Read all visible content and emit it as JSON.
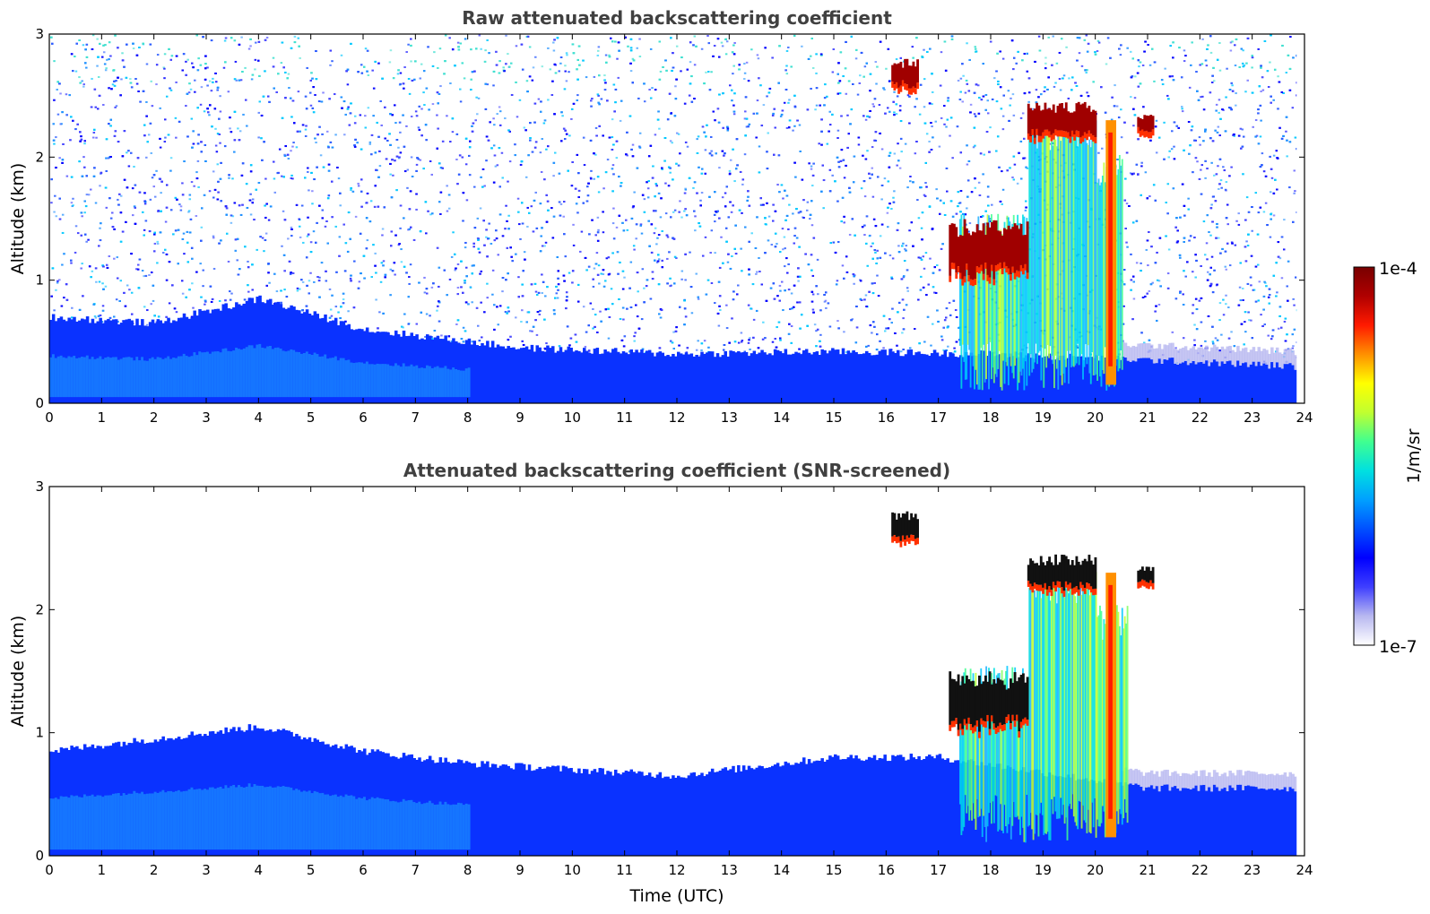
{
  "colors": {
    "background": "#ffffff",
    "axis": "#000000",
    "title": "#404040",
    "colormap": [
      "#ffffff",
      "#b8b8f0",
      "#3f3fff",
      "#0000ff",
      "#0050ff",
      "#00a0ff",
      "#00e0e0",
      "#40ff90",
      "#c0ff30",
      "#ffff00",
      "#ff9000",
      "#ff1a00",
      "#b00000",
      "#780000"
    ]
  },
  "colorbar": {
    "label": "1/m/sr",
    "max_label": "1e-4",
    "min_label": "1e-7",
    "scale": "log"
  },
  "chart_data": [
    {
      "type": "heatmap",
      "title": "Raw attenuated backscattering coefficient",
      "xlabel": "",
      "ylabel": "Altitude (km)",
      "xlim": [
        0,
        24
      ],
      "ylim": [
        0,
        3
      ],
      "xticks": [
        "0",
        "1",
        "2",
        "3",
        "4",
        "5",
        "6",
        "7",
        "8",
        "9",
        "10",
        "11",
        "12",
        "13",
        "14",
        "15",
        "16",
        "17",
        "18",
        "19",
        "20",
        "21",
        "22",
        "23",
        "24"
      ],
      "yticks": [
        "0",
        "1",
        "2",
        "3"
      ],
      "data_end_time": 23.85,
      "noise_background": "scattered blue/cyan speckle over full altitude range",
      "layers": [
        {
          "name": "boundary layer",
          "x_start": 0,
          "x_end": 23.85,
          "top_km_by_hour": [
            [
              0,
              0.7
            ],
            [
              2,
              0.65
            ],
            [
              4,
              0.85
            ],
            [
              6,
              0.6
            ],
            [
              9,
              0.45
            ],
            [
              12,
              0.4
            ],
            [
              15,
              0.42
            ],
            [
              18,
              0.4
            ],
            [
              21,
              0.35
            ],
            [
              23.85,
              0.3
            ]
          ],
          "level": "blue"
        },
        {
          "name": "cloud base lower",
          "x_start": 17.2,
          "x_end": 18.7,
          "alt_km": [
            1.0,
            1.5
          ],
          "level": "dark red"
        },
        {
          "name": "cloud upper",
          "x_start": 18.7,
          "x_end": 20.0,
          "alt_km": [
            2.15,
            2.45
          ],
          "level": "dark red"
        },
        {
          "name": "cloud aloft",
          "x_start": 16.1,
          "x_end": 16.6,
          "alt_km": [
            2.55,
            2.8
          ],
          "level": "dark red"
        },
        {
          "name": "cloud aloft",
          "x_start": 20.8,
          "x_end": 21.1,
          "alt_km": [
            2.2,
            2.35
          ],
          "level": "dark red"
        },
        {
          "name": "precipitation streaks",
          "x_start": 17.4,
          "x_end": 20.5,
          "alt_km": [
            0.1,
            2.4
          ],
          "level": "cyan-yellow"
        }
      ]
    },
    {
      "type": "heatmap",
      "title": "Attenuated backscattering coefficient (SNR-screened)",
      "xlabel": "Time (UTC)",
      "ylabel": "Altitude (km)",
      "xlim": [
        0,
        24
      ],
      "ylim": [
        0,
        3
      ],
      "xticks": [
        "0",
        "1",
        "2",
        "3",
        "4",
        "5",
        "6",
        "7",
        "8",
        "9",
        "10",
        "11",
        "12",
        "13",
        "14",
        "15",
        "16",
        "17",
        "18",
        "19",
        "20",
        "21",
        "22",
        "23",
        "24"
      ],
      "yticks": [
        "0",
        "1",
        "2",
        "3"
      ],
      "data_end_time": 23.85,
      "noise_background": "removed (white)",
      "layers": [
        {
          "name": "boundary layer",
          "x_start": 0,
          "x_end": 23.85,
          "top_km_by_hour": [
            [
              0,
              0.85
            ],
            [
              2,
              0.95
            ],
            [
              4,
              1.05
            ],
            [
              5,
              0.95
            ],
            [
              6,
              0.85
            ],
            [
              8,
              0.75
            ],
            [
              10,
              0.7
            ],
            [
              12,
              0.65
            ],
            [
              15,
              0.8
            ],
            [
              17,
              0.8
            ],
            [
              21,
              0.55
            ],
            [
              23.85,
              0.55
            ]
          ],
          "level": "blue"
        },
        {
          "name": "cloud base lower",
          "x_start": 17.2,
          "x_end": 18.7,
          "alt_km": [
            1.0,
            1.5
          ],
          "level": "black/dark red"
        },
        {
          "name": "cloud upper",
          "x_start": 18.7,
          "x_end": 20.0,
          "alt_km": [
            2.15,
            2.45
          ],
          "level": "black"
        },
        {
          "name": "cloud aloft",
          "x_start": 16.1,
          "x_end": 16.6,
          "alt_km": [
            2.55,
            2.8
          ],
          "level": "black"
        },
        {
          "name": "cloud aloft",
          "x_start": 20.8,
          "x_end": 21.1,
          "alt_km": [
            2.2,
            2.35
          ],
          "level": "black"
        },
        {
          "name": "precipitation streaks",
          "x_start": 17.4,
          "x_end": 20.6,
          "alt_km": [
            0.1,
            2.5
          ],
          "level": "cyan-yellow"
        }
      ]
    }
  ]
}
